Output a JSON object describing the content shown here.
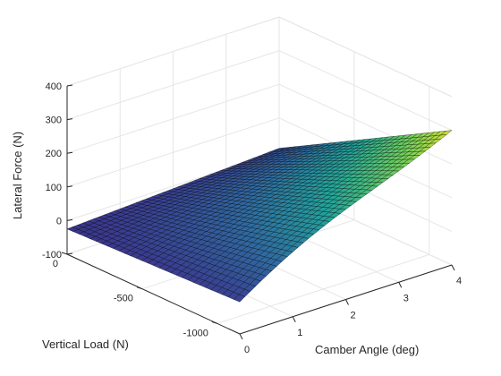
{
  "chart_data": {
    "type": "surface",
    "title": "",
    "xlabel": "Camber Angle (deg)",
    "ylabel": "Vertical Load (N)",
    "zlabel": "Lateral Force (N)",
    "x_ticks": [
      "0",
      "1",
      "2",
      "3",
      "4"
    ],
    "y_ticks": [
      "0",
      "-500",
      "-1000"
    ],
    "z_ticks": [
      "-100",
      "0",
      "100",
      "200",
      "300",
      "400"
    ],
    "xlim": [
      0,
      4
    ],
    "ylim": [
      -1150,
      0
    ],
    "zlim": [
      -100,
      400
    ],
    "grid": true,
    "colormap": [
      "#2d0f56",
      "#3a3a8f",
      "#2f6aa0",
      "#22a59a",
      "#74d15a",
      "#f3e524"
    ],
    "surface_description": "Lateral force grows roughly with camber angle times load magnitude; near-zero camber the force is about 0 across loads, at 4 deg and ~-1000 N it reaches ~300 N",
    "sample_points": [
      {
        "camber": 0,
        "load": 0,
        "force": -25
      },
      {
        "camber": 0,
        "load": -1150,
        "force": -5
      },
      {
        "camber": 4,
        "load": 0,
        "force": 10
      },
      {
        "camber": 2,
        "load": -600,
        "force": 100
      },
      {
        "camber": 4,
        "load": -1150,
        "force": 300
      }
    ]
  }
}
